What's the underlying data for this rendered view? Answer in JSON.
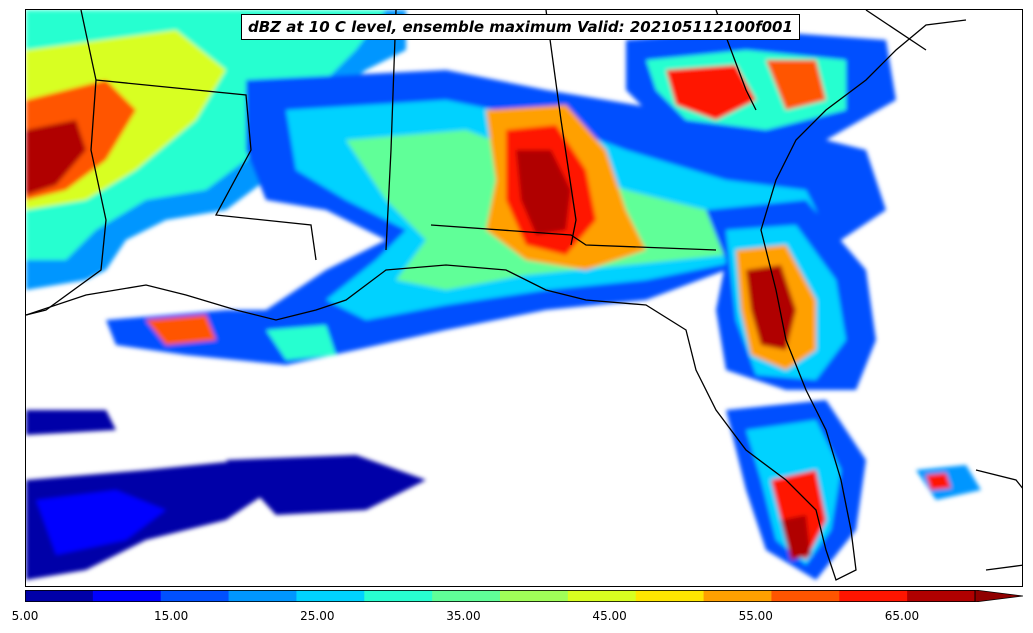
{
  "title": "dBZ at 10 C level, ensemble maximum Valid: 202105112100f001",
  "colorbar": {
    "min": 5,
    "max": 70,
    "step": 5,
    "extend": "max",
    "tick_labels": [
      "5.00",
      "15.00",
      "25.00",
      "35.00",
      "45.00",
      "55.00",
      "65.00"
    ],
    "tick_values": [
      5,
      15,
      25,
      35,
      45,
      55,
      65
    ],
    "colors": [
      "#0000a8",
      "#0000ff",
      "#0050ff",
      "#0096ff",
      "#00d2ff",
      "#28ffd0",
      "#60ff98",
      "#a0ff58",
      "#d8ff20",
      "#ffe600",
      "#ffa000",
      "#ff5500",
      "#ff1500",
      "#b00000"
    ],
    "extend_color": "#900000"
  },
  "map": {
    "region": "Southeastern United States and Gulf of Mexico",
    "background": "#ffffff",
    "border_color": "#000000"
  }
}
